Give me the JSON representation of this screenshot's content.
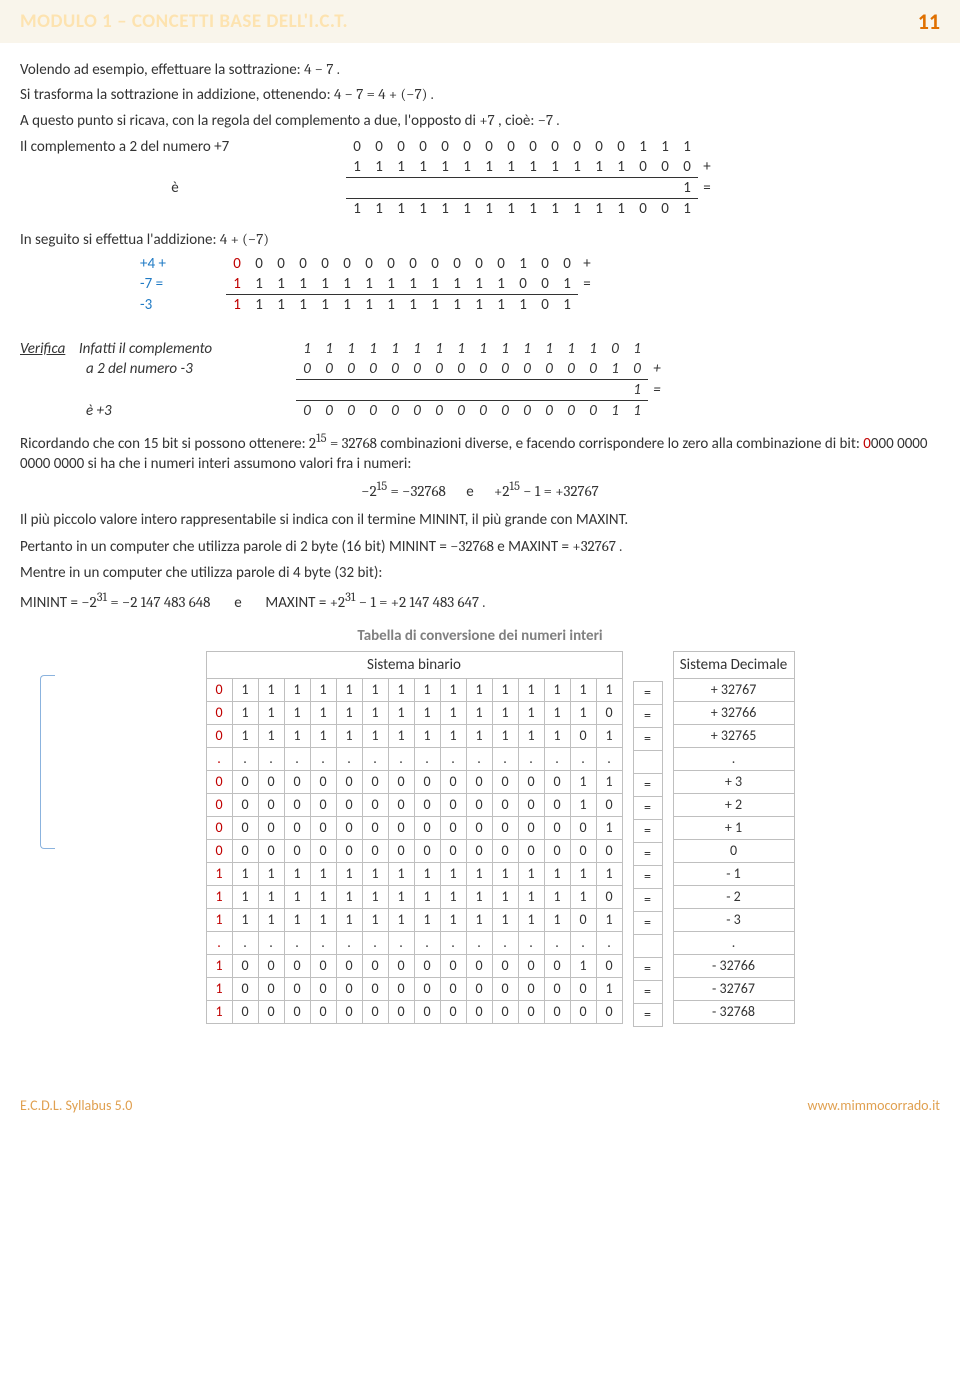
{
  "header": {
    "module": "MODULO 1 – CONCETTI BASE DELL'I.C.T.",
    "page": "11"
  },
  "para": {
    "p1a": "Volendo ad esempio, effettuare la sottrazione:  ",
    "p1b": "4 − 7 .",
    "p2a": "Si trasforma la sottrazione in addizione, ottenendo:   ",
    "p2b": "4 − 7 = 4 + (−7) .",
    "p3a": "A questo punto si ricava, con la regola del complemento a due, l'opposto di   ",
    "p3b": "+7 ",
    "p3c": ",  cioè:  ",
    "p3d": "−7 .",
    "compl_label": "Il complemento a 2 del numero +7",
    "e_label": "è",
    "add_label_a": "In seguito si effettua l'addizione:  ",
    "add_label_b": "4 + (−7)",
    "verifica": "Verifica",
    "ver_sub_a": "Infatti il complemento",
    "ver_sub_b": "a 2 del numero -3",
    "ver_sub_c": "è  +3",
    "p4a": "Ricordando che con 15 bit si possono ottenere:  ",
    "p4b": "2",
    "p4b_sup": "15",
    "p4c": " = 32768 ",
    "p4d": " combinazioni diverse, e facendo corrispondere lo zero alla combinazione di bit: ",
    "p4e": "0",
    "p4f": "000 0000 0000 0000 si ha che i numeri interi assumono valori fra i numeri:",
    "range_a": "−2",
    "range_a_sup": "15",
    "range_b": " = −32768",
    "range_e": "e",
    "range_c": "+2",
    "range_c_sup": "15",
    "range_d": " − 1 = +32767",
    "p5": "Il più piccolo valore intero rappresentabile si indica con il termine MININT, il più grande con MAXINT.",
    "p6a": "Pertanto in un computer che utilizza parole di 2 byte (16 bit)  MININT = ",
    "p6b": "−32768 ",
    "p6c": " e   MAXINT = ",
    "p6d": "+32767 .",
    "p7": "Mentre in un computer che utilizza parole di 4 byte (32 bit):",
    "p8a": "MININT = ",
    "p8b": "−2",
    "p8b_sup": "31",
    "p8c": " = −2 147 483 648",
    "p8e": "e",
    "p8d": "MAXINT = ",
    "p8f": "+2",
    "p8f_sup": "31",
    "p8g": " − 1 = +2 147 483 647 .",
    "table_title": "Tabella di conversione dei numeri interi",
    "col_bin": "Sistema binario",
    "col_dec": "Sistema Decimale"
  },
  "lbl": {
    "plus4": "+4  +",
    "minus7": "-7  =",
    "minus3": "-3"
  },
  "compl": {
    "r1": [
      "0",
      "0",
      "0",
      "0",
      "0",
      "0",
      "0",
      "0",
      "0",
      "0",
      "0",
      "0",
      "0",
      "1",
      "1",
      "1",
      ""
    ],
    "r2": [
      "1",
      "1",
      "1",
      "1",
      "1",
      "1",
      "1",
      "1",
      "1",
      "1",
      "1",
      "1",
      "1",
      "0",
      "0",
      "0",
      "+"
    ],
    "r3": [
      "",
      "",
      "",
      "",
      "",
      "",
      "",
      "",
      "",
      "",
      "",
      "",
      "",
      "",
      "",
      "1",
      "="
    ],
    "r4": [
      "1",
      "1",
      "1",
      "1",
      "1",
      "1",
      "1",
      "1",
      "1",
      "1",
      "1",
      "1",
      "1",
      "0",
      "0",
      "1",
      ""
    ]
  },
  "add": {
    "r1": [
      "0",
      "0",
      "0",
      "0",
      "0",
      "0",
      "0",
      "0",
      "0",
      "0",
      "0",
      "0",
      "0",
      "1",
      "0",
      "0",
      "+"
    ],
    "r2": [
      "1",
      "1",
      "1",
      "1",
      "1",
      "1",
      "1",
      "1",
      "1",
      "1",
      "1",
      "1",
      "1",
      "0",
      "0",
      "1",
      "="
    ],
    "r3": [
      "1",
      "1",
      "1",
      "1",
      "1",
      "1",
      "1",
      "1",
      "1",
      "1",
      "1",
      "1",
      "1",
      "1",
      "0",
      "1",
      ""
    ]
  },
  "ver": {
    "r1": [
      "1",
      "1",
      "1",
      "1",
      "1",
      "1",
      "1",
      "1",
      "1",
      "1",
      "1",
      "1",
      "1",
      "1",
      "0",
      "1",
      ""
    ],
    "r2": [
      "0",
      "0",
      "0",
      "0",
      "0",
      "0",
      "0",
      "0",
      "0",
      "0",
      "0",
      "0",
      "0",
      "0",
      "1",
      "0",
      "+"
    ],
    "r3": [
      "",
      "",
      "",
      "",
      "",
      "",
      "",
      "",
      "",
      "",
      "",
      "",
      "",
      "",
      "",
      "1",
      "="
    ],
    "r4": [
      "0",
      "0",
      "0",
      "0",
      "0",
      "0",
      "0",
      "0",
      "0",
      "0",
      "0",
      "0",
      "0",
      "0",
      "1",
      "1",
      ""
    ]
  },
  "conv": [
    {
      "bits": [
        "0",
        "1",
        "1",
        "1",
        "1",
        "1",
        "1",
        "1",
        "1",
        "1",
        "1",
        "1",
        "1",
        "1",
        "1",
        "1"
      ],
      "dec": "+ 32767"
    },
    {
      "bits": [
        "0",
        "1",
        "1",
        "1",
        "1",
        "1",
        "1",
        "1",
        "1",
        "1",
        "1",
        "1",
        "1",
        "1",
        "1",
        "0"
      ],
      "dec": "+ 32766"
    },
    {
      "bits": [
        "0",
        "1",
        "1",
        "1",
        "1",
        "1",
        "1",
        "1",
        "1",
        "1",
        "1",
        "1",
        "1",
        "1",
        "0",
        "1"
      ],
      "dec": "+ 32765"
    },
    {
      "bits": [
        ".",
        ".",
        ".",
        ".",
        ".",
        ".",
        ".",
        ".",
        ".",
        ".",
        ".",
        ".",
        ".",
        ".",
        ".",
        "."
      ],
      "dec": "."
    },
    {
      "bits": [
        "0",
        "0",
        "0",
        "0",
        "0",
        "0",
        "0",
        "0",
        "0",
        "0",
        "0",
        "0",
        "0",
        "0",
        "1",
        "1"
      ],
      "dec": "+ 3"
    },
    {
      "bits": [
        "0",
        "0",
        "0",
        "0",
        "0",
        "0",
        "0",
        "0",
        "0",
        "0",
        "0",
        "0",
        "0",
        "0",
        "1",
        "0"
      ],
      "dec": "+ 2"
    },
    {
      "bits": [
        "0",
        "0",
        "0",
        "0",
        "0",
        "0",
        "0",
        "0",
        "0",
        "0",
        "0",
        "0",
        "0",
        "0",
        "0",
        "1"
      ],
      "dec": "+ 1"
    },
    {
      "bits": [
        "0",
        "0",
        "0",
        "0",
        "0",
        "0",
        "0",
        "0",
        "0",
        "0",
        "0",
        "0",
        "0",
        "0",
        "0",
        "0"
      ],
      "dec": "0"
    },
    {
      "bits": [
        "1",
        "1",
        "1",
        "1",
        "1",
        "1",
        "1",
        "1",
        "1",
        "1",
        "1",
        "1",
        "1",
        "1",
        "1",
        "1"
      ],
      "dec": "- 1"
    },
    {
      "bits": [
        "1",
        "1",
        "1",
        "1",
        "1",
        "1",
        "1",
        "1",
        "1",
        "1",
        "1",
        "1",
        "1",
        "1",
        "1",
        "0"
      ],
      "dec": "- 2"
    },
    {
      "bits": [
        "1",
        "1",
        "1",
        "1",
        "1",
        "1",
        "1",
        "1",
        "1",
        "1",
        "1",
        "1",
        "1",
        "1",
        "0",
        "1"
      ],
      "dec": "- 3"
    },
    {
      "bits": [
        ".",
        ".",
        ".",
        ".",
        ".",
        ".",
        ".",
        ".",
        ".",
        ".",
        ".",
        ".",
        ".",
        ".",
        ".",
        "."
      ],
      "dec": "."
    },
    {
      "bits": [
        "1",
        "0",
        "0",
        "0",
        "0",
        "0",
        "0",
        "0",
        "0",
        "0",
        "0",
        "0",
        "0",
        "0",
        "1",
        "0"
      ],
      "dec": "- 32766"
    },
    {
      "bits": [
        "1",
        "0",
        "0",
        "0",
        "0",
        "0",
        "0",
        "0",
        "0",
        "0",
        "0",
        "0",
        "0",
        "0",
        "0",
        "1"
      ],
      "dec": "- 32767"
    },
    {
      "bits": [
        "1",
        "0",
        "0",
        "0",
        "0",
        "0",
        "0",
        "0",
        "0",
        "0",
        "0",
        "0",
        "0",
        "0",
        "0",
        "0"
      ],
      "dec": "- 32768"
    }
  ],
  "footer": {
    "left": "E.C.D.L.   Syllabus 5.0",
    "right": "www.mimmocorrado.it"
  }
}
